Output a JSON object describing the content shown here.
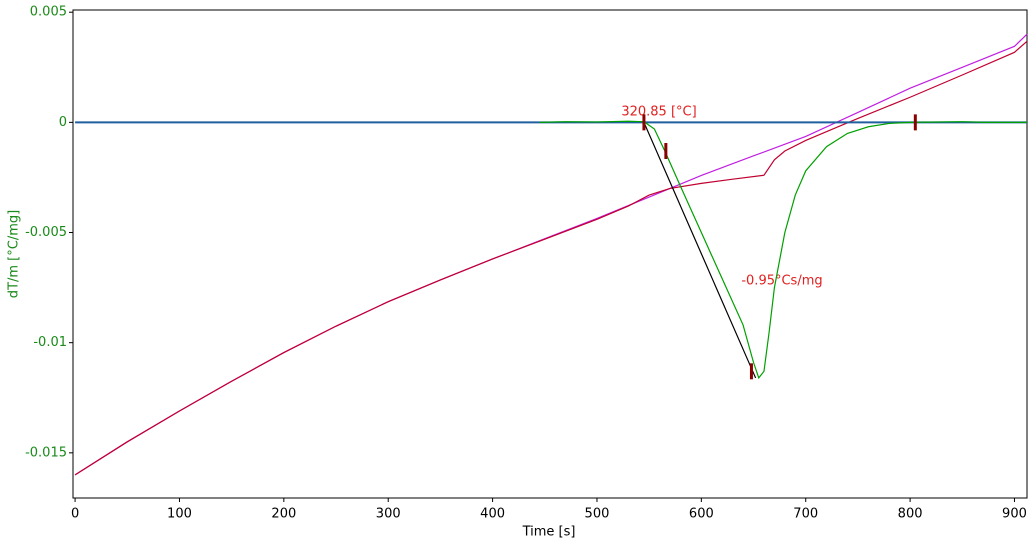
{
  "chart_data": {
    "type": "line",
    "x_label": "Time [s]",
    "y_label": "dT/m  [°C/mg]",
    "xlim": [
      -2,
      912
    ],
    "ylim": [
      -0.01705,
      0.0051
    ],
    "xticks": [
      0,
      100,
      200,
      300,
      400,
      500,
      600,
      700,
      800,
      900
    ],
    "yticks": [
      0.005,
      0,
      -0.005,
      -0.01,
      -0.015
    ],
    "annotations": [
      "320.85 [°C]",
      "-0.95°Cs/mg"
    ],
    "series": [
      {
        "color": "#c020e0",
        "x": [
          0,
          50,
          100,
          150,
          200,
          250,
          300,
          350,
          400,
          450,
          500,
          550,
          600,
          650,
          700,
          750,
          800,
          850,
          900,
          912
        ],
        "values": [
          -0.016,
          -0.0145,
          -0.0131,
          -0.01175,
          -0.01045,
          -0.00925,
          -0.00814,
          -0.00715,
          -0.0062,
          -0.00528,
          -0.00436,
          -0.00339,
          -0.00241,
          -0.00152,
          -0.00064,
          0.00045,
          0.00155,
          0.0025,
          0.00345,
          0.004
        ]
      },
      {
        "color": "#c00030",
        "x": [
          0,
          50,
          100,
          150,
          200,
          250,
          300,
          350,
          400,
          450,
          500,
          530,
          550,
          570,
          600,
          630,
          660,
          670,
          680,
          700,
          750,
          800,
          850,
          900,
          912
        ],
        "values": [
          -0.016,
          -0.0145,
          -0.0131,
          -0.01175,
          -0.01045,
          -0.00925,
          -0.00814,
          -0.00715,
          -0.0062,
          -0.0053,
          -0.0044,
          -0.0038,
          -0.0033,
          -0.003,
          -0.00277,
          -0.00258,
          -0.0024,
          -0.0017,
          -0.0013,
          -0.00082,
          0.00018,
          0.00114,
          0.00215,
          0.00318,
          0.00368
        ]
      },
      {
        "color": "#1f5fa0",
        "x": [
          0,
          912
        ],
        "values": [
          0,
          0
        ]
      },
      {
        "color": "#00a000",
        "x": [
          445,
          470,
          500,
          530,
          545,
          555,
          565,
          580,
          600,
          620,
          640,
          650,
          655,
          660,
          665,
          670,
          680,
          690,
          700,
          720,
          740,
          760,
          780,
          800,
          850,
          860,
          870,
          912
        ],
        "values": [
          0,
          3e-05,
          2e-05,
          5e-05,
          3e-05,
          -0.0003,
          -0.0013,
          -0.0029,
          -0.005,
          -0.0071,
          -0.0092,
          -0.0109,
          -0.0116,
          -0.0113,
          -0.0095,
          -0.0075,
          -0.005,
          -0.0033,
          -0.0022,
          -0.0011,
          -0.0005,
          -0.0002,
          -5e-05,
          0,
          3e-05,
          2e-05,
          0,
          0
        ]
      },
      {
        "color": "#000000",
        "x": [
          545,
          652
        ],
        "values": [
          0,
          -0.0116
        ]
      }
    ],
    "markers": {
      "color": "#8b0000",
      "x": [
        545,
        566,
        648,
        805
      ],
      "values": [
        0,
        -0.0013,
        -0.0113,
        0
      ]
    }
  }
}
